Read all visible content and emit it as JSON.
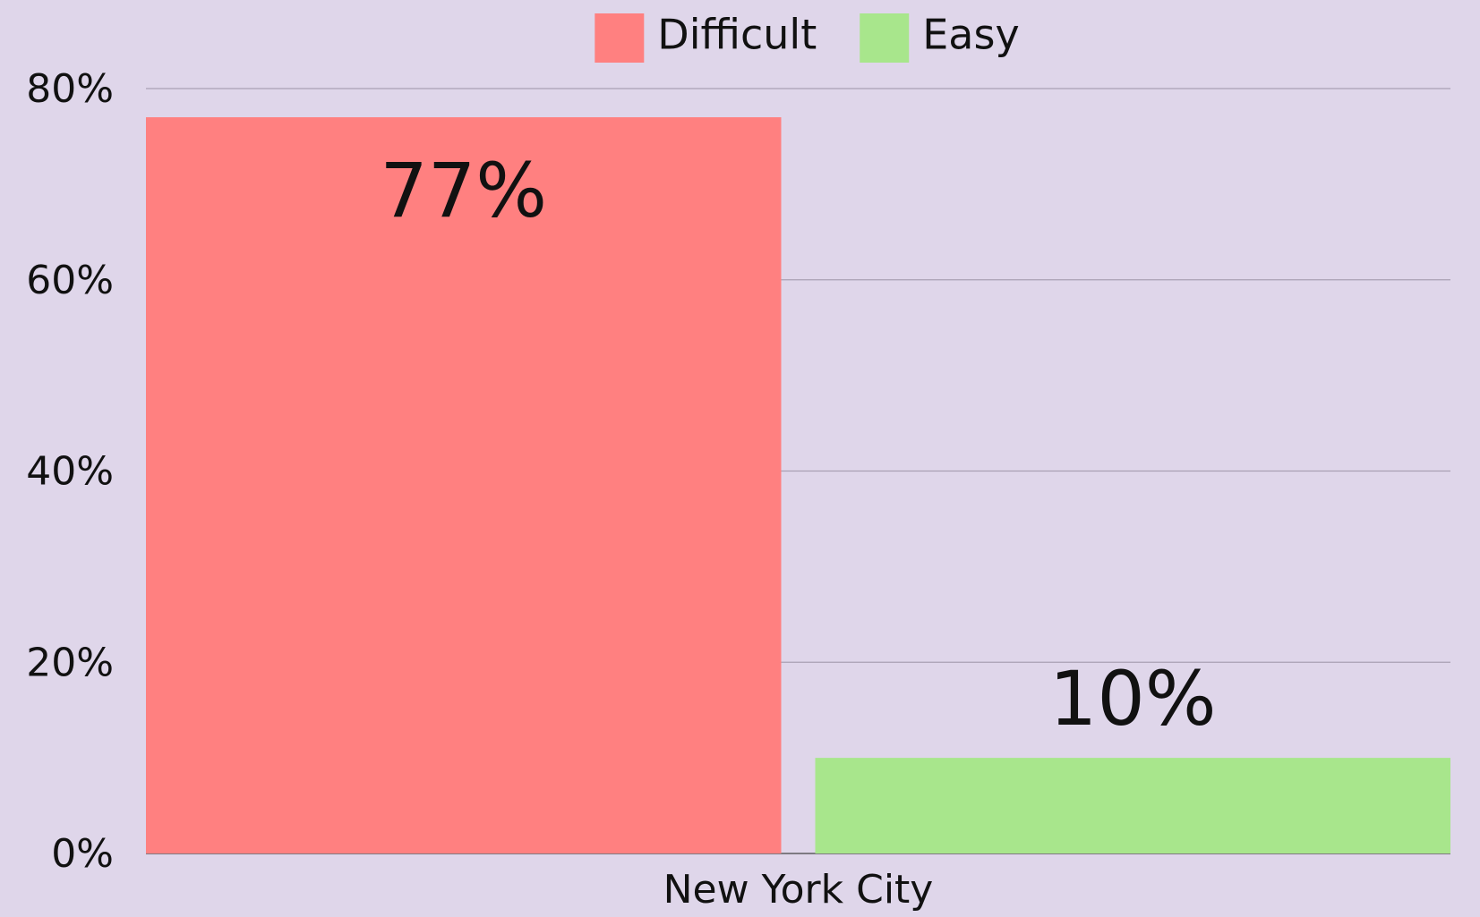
{
  "chart_data": {
    "type": "bar",
    "categories": [
      "New York City"
    ],
    "series": [
      {
        "name": "Difficult",
        "color": "#ff8080",
        "values": [
          77
        ],
        "value_labels": [
          "77%"
        ]
      },
      {
        "name": "Easy",
        "color": "#a8e68c",
        "values": [
          10
        ],
        "value_labels": [
          "10%"
        ]
      }
    ],
    "ylim": [
      0,
      80
    ],
    "yticks": [
      {
        "value": 0,
        "label": "0%"
      },
      {
        "value": 20,
        "label": "20%"
      },
      {
        "value": 40,
        "label": "40%"
      },
      {
        "value": 60,
        "label": "60%"
      },
      {
        "value": 80,
        "label": "80%"
      }
    ],
    "grid": true,
    "legend": "top"
  }
}
